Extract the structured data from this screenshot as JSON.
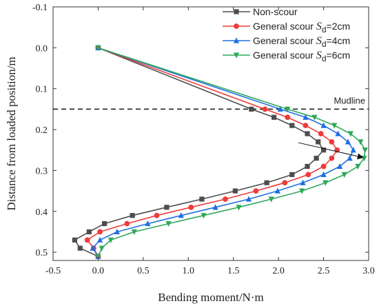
{
  "chart_data": {
    "type": "line",
    "xlabel": "Bending moment/N·m",
    "ylabel": "Distance from loaded position/m",
    "xlim": [
      -0.5,
      3.0
    ],
    "ylim": [
      -0.1,
      0.52
    ],
    "y_inverted": true,
    "xticks": [
      "-0.5",
      "0.0",
      "0.5",
      "1.0",
      "1.5",
      "2.0",
      "2.5",
      "3.0"
    ],
    "yticks": [
      "-0.1",
      "0.0",
      "0.1",
      "0.2",
      "0.3",
      "0.4",
      "0.5"
    ],
    "grid": false,
    "legend_position": "top-right",
    "mudline": {
      "label": "Mudline",
      "y": 0.15
    },
    "series": [
      {
        "name": "Non-scour",
        "prefix": "Non-scour",
        "symbol": "",
        "subscript": "",
        "suffix": "",
        "color": "#4d4d4d",
        "marker": "square",
        "points": [
          [
            0.0,
            0.0
          ],
          [
            1.7,
            0.15
          ],
          [
            1.95,
            0.17
          ],
          [
            2.15,
            0.19
          ],
          [
            2.32,
            0.21
          ],
          [
            2.44,
            0.23
          ],
          [
            2.5,
            0.25
          ],
          [
            2.42,
            0.27
          ],
          [
            2.32,
            0.29
          ],
          [
            2.15,
            0.31
          ],
          [
            1.87,
            0.33
          ],
          [
            1.52,
            0.35
          ],
          [
            1.15,
            0.37
          ],
          [
            0.76,
            0.39
          ],
          [
            0.38,
            0.41
          ],
          [
            0.07,
            0.43
          ],
          [
            -0.1,
            0.45
          ],
          [
            -0.26,
            0.47
          ],
          [
            -0.2,
            0.49
          ],
          [
            0.0,
            0.51
          ]
        ]
      },
      {
        "name": "General scour Sd=2cm",
        "prefix": "General scour ",
        "symbol": "S",
        "subscript": "d",
        "suffix": "=2cm",
        "color": "#ee3b3b",
        "marker": "circle",
        "points": [
          [
            0.0,
            0.0
          ],
          [
            1.85,
            0.15
          ],
          [
            2.1,
            0.17
          ],
          [
            2.3,
            0.19
          ],
          [
            2.47,
            0.21
          ],
          [
            2.59,
            0.23
          ],
          [
            2.65,
            0.25
          ],
          [
            2.59,
            0.27
          ],
          [
            2.5,
            0.29
          ],
          [
            2.33,
            0.31
          ],
          [
            2.07,
            0.33
          ],
          [
            1.75,
            0.35
          ],
          [
            1.41,
            0.37
          ],
          [
            1.03,
            0.39
          ],
          [
            0.65,
            0.41
          ],
          [
            0.32,
            0.43
          ],
          [
            0.02,
            0.45
          ],
          [
            -0.12,
            0.47
          ],
          [
            -0.05,
            0.49
          ],
          [
            0.0,
            0.51
          ]
        ]
      },
      {
        "name": "General scour Sd=4cm",
        "prefix": "General scour ",
        "symbol": "S",
        "subscript": "d",
        "suffix": "=4cm",
        "color": "#1f6fe0",
        "marker": "triangle-up",
        "points": [
          [
            0.0,
            0.0
          ],
          [
            2.02,
            0.15
          ],
          [
            2.3,
            0.17
          ],
          [
            2.5,
            0.19
          ],
          [
            2.66,
            0.21
          ],
          [
            2.77,
            0.23
          ],
          [
            2.83,
            0.25
          ],
          [
            2.79,
            0.27
          ],
          [
            2.68,
            0.29
          ],
          [
            2.5,
            0.31
          ],
          [
            2.27,
            0.33
          ],
          [
            1.99,
            0.35
          ],
          [
            1.67,
            0.37
          ],
          [
            1.3,
            0.39
          ],
          [
            0.92,
            0.41
          ],
          [
            0.55,
            0.43
          ],
          [
            0.21,
            0.45
          ],
          [
            0.02,
            0.47
          ],
          [
            -0.06,
            0.49
          ],
          [
            0.0,
            0.51
          ]
        ]
      },
      {
        "name": "General scour Sd=6cm",
        "prefix": "General scour ",
        "symbol": "S",
        "subscript": "d",
        "suffix": "=6cm",
        "color": "#2fa85a",
        "marker": "triangle-down",
        "points": [
          [
            0.0,
            0.0
          ],
          [
            2.1,
            0.15
          ],
          [
            2.4,
            0.17
          ],
          [
            2.62,
            0.19
          ],
          [
            2.8,
            0.21
          ],
          [
            2.91,
            0.23
          ],
          [
            2.96,
            0.25
          ],
          [
            2.95,
            0.27
          ],
          [
            2.88,
            0.29
          ],
          [
            2.73,
            0.31
          ],
          [
            2.52,
            0.33
          ],
          [
            2.26,
            0.35
          ],
          [
            1.92,
            0.37
          ],
          [
            1.56,
            0.39
          ],
          [
            1.17,
            0.41
          ],
          [
            0.78,
            0.43
          ],
          [
            0.4,
            0.45
          ],
          [
            0.14,
            0.47
          ],
          [
            0.04,
            0.49
          ],
          [
            0.0,
            0.51
          ]
        ]
      }
    ]
  }
}
